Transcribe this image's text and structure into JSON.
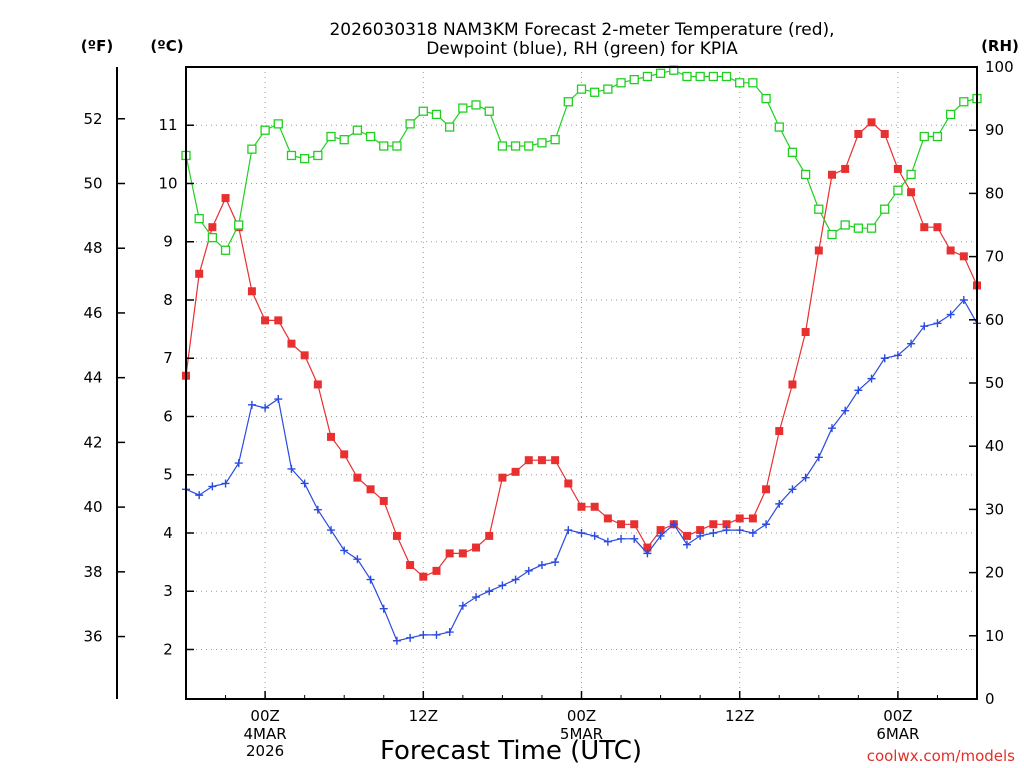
{
  "chart_data": {
    "type": "line",
    "title": "2026030318 NAM3KM Forecast 2-meter Temperature (red),",
    "subtitle": "Dewpoint (blue), RH (green) for KPIA",
    "xlabel": "Forecast Time (UTC)",
    "credit": "coolwx.com/models",
    "units": {
      "left_f": "(ºF)",
      "left_c": "(ºC)",
      "right": "(RH)"
    },
    "x_ticks": [
      "00Z",
      "12Z",
      "00Z",
      "12Z",
      "00Z"
    ],
    "x_tick_hours": [
      6,
      18,
      30,
      42,
      54
    ],
    "day_labels": [
      {
        "hour": 6,
        "lines": [
          "4MAR",
          "2026"
        ]
      },
      {
        "hour": 30,
        "lines": [
          "5MAR"
        ]
      },
      {
        "hour": 54,
        "lines": [
          "6MAR"
        ]
      }
    ],
    "xlim": [
      0,
      60
    ],
    "ylim_c": [
      1.15,
      12.0
    ],
    "ylim_rh": [
      0,
      100
    ],
    "f_ticks": [
      "36",
      "38",
      "40",
      "42",
      "44",
      "46",
      "48",
      "50",
      "52"
    ],
    "c_ticks": [
      "2",
      "3",
      "4",
      "5",
      "6",
      "7",
      "8",
      "9",
      "10",
      "11"
    ],
    "rh_ticks": [
      "0",
      "10",
      "20",
      "30",
      "40",
      "50",
      "60",
      "70",
      "80",
      "90",
      "100"
    ],
    "hours": [
      0,
      1,
      2,
      3,
      4,
      5,
      6,
      7,
      8,
      9,
      10,
      11,
      12,
      13,
      14,
      15,
      16,
      17,
      18,
      19,
      20,
      21,
      22,
      23,
      24,
      25,
      26,
      27,
      28,
      29,
      30,
      31,
      32,
      33,
      34,
      35,
      36,
      37,
      38,
      39,
      40,
      41,
      42,
      43,
      44,
      45,
      46,
      47,
      48,
      49,
      50,
      51,
      52,
      53,
      54,
      55,
      56,
      57,
      58,
      59,
      60
    ],
    "series": [
      {
        "name": "Temperature (red)",
        "color": "#e83030",
        "marker": "filled-square",
        "unit": "C",
        "values": [
          6.7,
          8.45,
          9.25,
          9.75,
          9.25,
          8.15,
          7.65,
          7.65,
          7.25,
          7.05,
          6.55,
          5.65,
          5.35,
          4.95,
          4.75,
          4.55,
          3.95,
          3.45,
          3.25,
          3.35,
          3.65,
          3.65,
          3.75,
          3.95,
          4.95,
          5.05,
          5.25,
          5.25,
          5.25,
          4.85,
          4.45,
          4.45,
          4.25,
          4.15,
          4.15,
          3.75,
          4.05,
          4.15,
          3.95,
          4.05,
          4.15,
          4.15,
          4.25,
          4.25,
          4.75,
          5.75,
          6.55,
          7.45,
          8.85,
          10.15,
          10.25,
          10.85,
          11.05,
          10.85,
          10.25,
          9.85,
          9.25,
          9.25,
          8.85,
          8.75,
          8.25
        ]
      },
      {
        "name": "Dewpoint (blue)",
        "color": "#2a4ae0",
        "marker": "plus",
        "unit": "C",
        "values": [
          4.75,
          4.65,
          4.8,
          4.85,
          5.2,
          6.2,
          6.15,
          6.3,
          5.1,
          4.85,
          4.4,
          4.05,
          3.7,
          3.55,
          3.2,
          2.7,
          2.15,
          2.2,
          2.25,
          2.25,
          2.3,
          2.75,
          2.9,
          3.0,
          3.1,
          3.2,
          3.35,
          3.45,
          3.5,
          4.05,
          4.0,
          3.95,
          3.85,
          3.9,
          3.9,
          3.65,
          3.95,
          4.15,
          3.8,
          3.95,
          4.0,
          4.05,
          4.05,
          4.0,
          4.15,
          4.5,
          4.75,
          4.95,
          5.3,
          5.8,
          6.1,
          6.45,
          6.65,
          7.0,
          7.05,
          7.25,
          7.55,
          7.6,
          7.75,
          8.0,
          7.6
        ]
      },
      {
        "name": "RH (green)",
        "color": "#20d020",
        "marker": "open-square",
        "unit": "%",
        "values": [
          86,
          76,
          73,
          71,
          75,
          87,
          90,
          91,
          86,
          85.5,
          86,
          89,
          88.5,
          90,
          89,
          87.5,
          87.5,
          91,
          93,
          92.5,
          90.5,
          93.5,
          94,
          93,
          87.5,
          87.5,
          87.5,
          88,
          88.5,
          94.5,
          96.5,
          96,
          96.5,
          97.5,
          98,
          98.5,
          99,
          99.5,
          98.5,
          98.5,
          98.5,
          98.5,
          97.5,
          97.5,
          95,
          90.5,
          86.5,
          83,
          77.5,
          73.5,
          75,
          74.5,
          74.5,
          77.5,
          80.5,
          83,
          89,
          89,
          92.5,
          94.5,
          95
        ]
      }
    ]
  }
}
